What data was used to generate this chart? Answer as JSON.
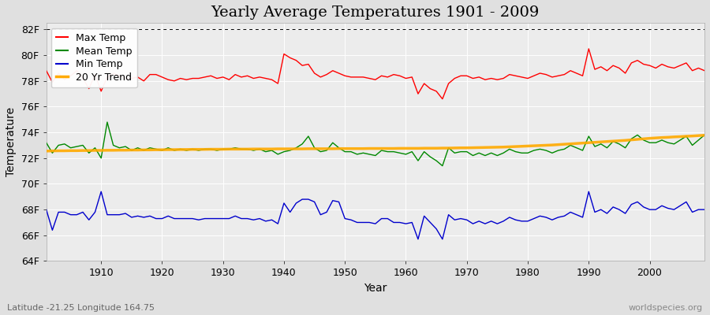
{
  "title": "Yearly Average Temperatures 1901 - 2009",
  "xlabel": "Year",
  "ylabel": "Temperature",
  "subtitle_left": "Latitude -21.25 Longitude 164.75",
  "subtitle_right": "worldspecies.org",
  "years": [
    1901,
    1902,
    1903,
    1904,
    1905,
    1906,
    1907,
    1908,
    1909,
    1910,
    1911,
    1912,
    1913,
    1914,
    1915,
    1916,
    1917,
    1918,
    1919,
    1920,
    1921,
    1922,
    1923,
    1924,
    1925,
    1926,
    1927,
    1928,
    1929,
    1930,
    1931,
    1932,
    1933,
    1934,
    1935,
    1936,
    1937,
    1938,
    1939,
    1940,
    1941,
    1942,
    1943,
    1944,
    1945,
    1946,
    1947,
    1948,
    1949,
    1950,
    1951,
    1952,
    1953,
    1954,
    1955,
    1956,
    1957,
    1958,
    1959,
    1960,
    1961,
    1962,
    1963,
    1964,
    1965,
    1966,
    1967,
    1968,
    1969,
    1970,
    1971,
    1972,
    1973,
    1974,
    1975,
    1976,
    1977,
    1978,
    1979,
    1980,
    1981,
    1982,
    1983,
    1984,
    1985,
    1986,
    1987,
    1988,
    1989,
    1990,
    1991,
    1992,
    1993,
    1994,
    1995,
    1996,
    1997,
    1998,
    1999,
    2000,
    2001,
    2002,
    2003,
    2004,
    2005,
    2006,
    2007,
    2008,
    2009
  ],
  "max_temp": [
    78.8,
    77.9,
    78.6,
    78.1,
    78.4,
    78.8,
    78.2,
    77.4,
    78.5,
    77.2,
    78.3,
    78.6,
    78.4,
    78.2,
    78.2,
    78.3,
    78.0,
    78.5,
    78.5,
    78.3,
    78.1,
    78.0,
    78.2,
    78.1,
    78.2,
    78.2,
    78.3,
    78.4,
    78.2,
    78.3,
    78.1,
    78.5,
    78.3,
    78.4,
    78.2,
    78.3,
    78.2,
    78.1,
    77.8,
    80.1,
    79.8,
    79.6,
    79.2,
    79.3,
    78.6,
    78.3,
    78.5,
    78.8,
    78.6,
    78.4,
    78.3,
    78.3,
    78.3,
    78.2,
    78.1,
    78.4,
    78.3,
    78.5,
    78.4,
    78.2,
    78.3,
    77.0,
    77.8,
    77.4,
    77.2,
    76.6,
    77.8,
    78.2,
    78.4,
    78.4,
    78.2,
    78.3,
    78.1,
    78.2,
    78.1,
    78.2,
    78.5,
    78.4,
    78.3,
    78.2,
    78.4,
    78.6,
    78.5,
    78.3,
    78.4,
    78.5,
    78.8,
    78.6,
    78.4,
    80.5,
    78.9,
    79.1,
    78.8,
    79.2,
    79.0,
    78.6,
    79.4,
    79.6,
    79.3,
    79.2,
    79.0,
    79.3,
    79.1,
    79.0,
    79.2,
    79.4,
    78.8,
    79.0,
    78.8
  ],
  "mean_temp": [
    73.2,
    72.4,
    73.0,
    73.1,
    72.8,
    72.9,
    73.0,
    72.4,
    72.8,
    72.0,
    74.8,
    73.0,
    72.8,
    72.9,
    72.6,
    72.8,
    72.6,
    72.8,
    72.7,
    72.6,
    72.8,
    72.6,
    72.7,
    72.6,
    72.7,
    72.6,
    72.7,
    72.7,
    72.6,
    72.7,
    72.7,
    72.8,
    72.7,
    72.7,
    72.6,
    72.7,
    72.5,
    72.6,
    72.3,
    72.5,
    72.6,
    72.8,
    73.1,
    73.7,
    72.8,
    72.5,
    72.6,
    73.2,
    72.8,
    72.5,
    72.5,
    72.3,
    72.4,
    72.3,
    72.2,
    72.6,
    72.5,
    72.5,
    72.4,
    72.3,
    72.5,
    71.8,
    72.5,
    72.1,
    71.8,
    71.4,
    72.8,
    72.4,
    72.5,
    72.5,
    72.2,
    72.4,
    72.2,
    72.4,
    72.2,
    72.4,
    72.7,
    72.5,
    72.4,
    72.4,
    72.6,
    72.7,
    72.6,
    72.4,
    72.6,
    72.7,
    73.0,
    72.8,
    72.6,
    73.7,
    72.9,
    73.1,
    72.8,
    73.3,
    73.1,
    72.8,
    73.5,
    73.8,
    73.4,
    73.2,
    73.2,
    73.4,
    73.2,
    73.1,
    73.4,
    73.7,
    73.0,
    73.4,
    73.8
  ],
  "min_temp": [
    68.0,
    66.4,
    67.8,
    67.8,
    67.6,
    67.6,
    67.8,
    67.2,
    67.8,
    69.4,
    67.6,
    67.6,
    67.6,
    67.7,
    67.4,
    67.5,
    67.4,
    67.5,
    67.3,
    67.3,
    67.5,
    67.3,
    67.3,
    67.3,
    67.3,
    67.2,
    67.3,
    67.3,
    67.3,
    67.3,
    67.3,
    67.5,
    67.3,
    67.3,
    67.2,
    67.3,
    67.1,
    67.2,
    66.9,
    68.5,
    67.8,
    68.5,
    68.8,
    68.8,
    68.6,
    67.6,
    67.8,
    68.7,
    68.6,
    67.3,
    67.2,
    67.0,
    67.0,
    67.0,
    66.9,
    67.3,
    67.3,
    67.0,
    67.0,
    66.9,
    67.0,
    65.7,
    67.5,
    67.0,
    66.5,
    65.7,
    67.6,
    67.2,
    67.3,
    67.2,
    66.9,
    67.1,
    66.9,
    67.1,
    66.9,
    67.1,
    67.4,
    67.2,
    67.1,
    67.1,
    67.3,
    67.5,
    67.4,
    67.2,
    67.4,
    67.5,
    67.8,
    67.6,
    67.4,
    69.4,
    67.8,
    68.0,
    67.7,
    68.2,
    68.0,
    67.7,
    68.4,
    68.6,
    68.2,
    68.0,
    68.0,
    68.3,
    68.1,
    68.0,
    68.3,
    68.6,
    67.8,
    68.0,
    68.0
  ],
  "trend": [
    72.55,
    72.56,
    72.57,
    72.57,
    72.58,
    72.58,
    72.59,
    72.59,
    72.6,
    72.6,
    72.61,
    72.61,
    72.62,
    72.62,
    72.63,
    72.63,
    72.64,
    72.64,
    72.65,
    72.65,
    72.66,
    72.66,
    72.67,
    72.67,
    72.68,
    72.68,
    72.68,
    72.69,
    72.69,
    72.69,
    72.7,
    72.7,
    72.7,
    72.7,
    72.71,
    72.71,
    72.71,
    72.71,
    72.72,
    72.72,
    72.72,
    72.72,
    72.72,
    72.73,
    72.73,
    72.73,
    72.73,
    72.73,
    72.74,
    72.74,
    72.74,
    72.74,
    72.74,
    72.75,
    72.75,
    72.75,
    72.75,
    72.75,
    72.76,
    72.76,
    72.76,
    72.76,
    72.77,
    72.77,
    72.77,
    72.78,
    72.78,
    72.79,
    72.8,
    72.8,
    72.81,
    72.82,
    72.83,
    72.84,
    72.85,
    72.86,
    72.88,
    72.9,
    72.92,
    72.94,
    72.96,
    72.98,
    73.0,
    73.02,
    73.05,
    73.08,
    73.11,
    73.14,
    73.17,
    73.2,
    73.23,
    73.26,
    73.29,
    73.32,
    73.35,
    73.38,
    73.42,
    73.46,
    73.5,
    73.54,
    73.57,
    73.6,
    73.62,
    73.65,
    73.67,
    73.7,
    73.72,
    73.75,
    73.78
  ],
  "max_color": "#ff0000",
  "mean_color": "#008800",
  "min_color": "#0000cc",
  "trend_color": "#ffaa00",
  "bg_color": "#e0e0e0",
  "plot_bg_color": "#ececec",
  "grid_color": "#ffffff",
  "ylim": [
    64.0,
    82.5
  ],
  "yticks": [
    64,
    66,
    68,
    70,
    72,
    74,
    76,
    78,
    80,
    82
  ],
  "ytick_labels": [
    "64F",
    "66F",
    "68F",
    "70F",
    "72F",
    "74F",
    "76F",
    "78F",
    "80F",
    "82F"
  ],
  "hline_value": 82.0,
  "xlim": [
    1901,
    2009
  ],
  "title_fontsize": 14,
  "axis_label_fontsize": 10,
  "tick_fontsize": 9,
  "legend_fontsize": 9,
  "trend_linewidth": 2.5,
  "data_linewidth": 1.0
}
